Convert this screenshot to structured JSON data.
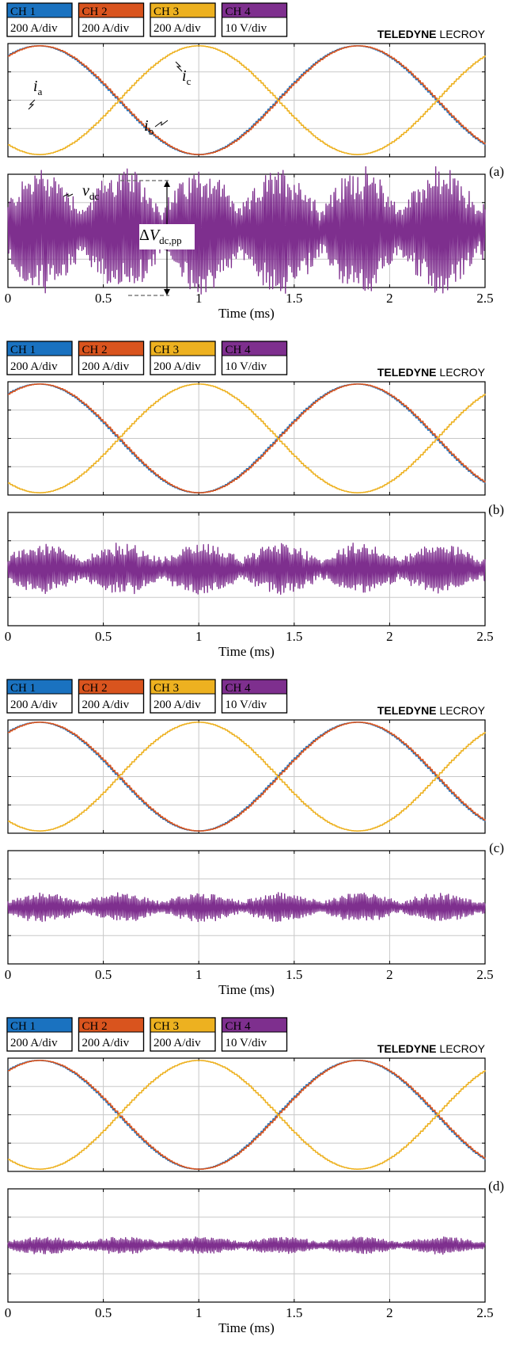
{
  "figure": {
    "brand": {
      "strong": "TELEDYNE",
      "light": "LECROY"
    },
    "x_axis_label": "Time (ms)",
    "channels": [
      {
        "id": "ch1",
        "label": "CH 1",
        "scale": "200 A/div",
        "color": "#1a72c0"
      },
      {
        "id": "ch2",
        "label": "CH 2",
        "scale": "200 A/div",
        "color": "#d9541e"
      },
      {
        "id": "ch3",
        "label": "CH 3",
        "scale": "200 A/div",
        "color": "#edb120"
      },
      {
        "id": "ch4",
        "label": "CH 4",
        "scale": "10 V/div",
        "color": "#7e2f8e"
      }
    ],
    "annotations": {
      "ia": {
        "base": "i",
        "sub": "a"
      },
      "ib": {
        "base": "i",
        "sub": "b"
      },
      "ic": {
        "base": "i",
        "sub": "c"
      },
      "vdc": {
        "base": "v",
        "sub": "dc"
      },
      "delta": {
        "prefix": "Δ",
        "base": "V",
        "sub": "dc,pp"
      }
    }
  },
  "chart_data": [
    {
      "panel": "(a)",
      "type": "line",
      "x_unit": "ms",
      "xlim": [
        0,
        2.5
      ],
      "xticks": [
        "0",
        "0.5",
        "1",
        "1.5",
        "2",
        "2.5"
      ],
      "grid": true,
      "currents": {
        "amplitude_div": 2,
        "frequency_khz": 0.6,
        "series": [
          {
            "channel": "CH 1",
            "phase_peak_ms": 1.83,
            "color": "#1a72c0"
          },
          {
            "channel": "CH 2",
            "phase_peak_ms": 0.17,
            "color": "#d9541e"
          },
          {
            "channel": "CH 3",
            "phase_peak_ms": 1.0,
            "color": "#edb120"
          }
        ]
      },
      "dc_voltage": {
        "channel": "CH 4",
        "ripple_pp_div": 4.4,
        "color": "#7e2f8e"
      }
    },
    {
      "panel": "(b)",
      "type": "line",
      "x_unit": "ms",
      "xlim": [
        0,
        2.5
      ],
      "xticks": [
        "0",
        "0.5",
        "1",
        "1.5",
        "2",
        "2.5"
      ],
      "grid": true,
      "currents": {
        "amplitude_div": 2,
        "frequency_khz": 0.6,
        "series": [
          {
            "channel": "CH 1",
            "phase_peak_ms": 1.83,
            "color": "#1a72c0"
          },
          {
            "channel": "CH 2",
            "phase_peak_ms": 0.17,
            "color": "#d9541e"
          },
          {
            "channel": "CH 3",
            "phase_peak_ms": 1.0,
            "color": "#edb120"
          }
        ]
      },
      "dc_voltage": {
        "channel": "CH 4",
        "ripple_pp_div": 1.8,
        "color": "#7e2f8e"
      }
    },
    {
      "panel": "(c)",
      "type": "line",
      "x_unit": "ms",
      "xlim": [
        0,
        2.5
      ],
      "xticks": [
        "0",
        "0.5",
        "1",
        "1.5",
        "2",
        "2.5"
      ],
      "grid": true,
      "currents": {
        "amplitude_div": 2,
        "frequency_khz": 0.6,
        "series": [
          {
            "channel": "CH 1",
            "phase_peak_ms": 1.83,
            "color": "#1a72c0"
          },
          {
            "channel": "CH 2",
            "phase_peak_ms": 0.17,
            "color": "#d9541e"
          },
          {
            "channel": "CH 3",
            "phase_peak_ms": 1.0,
            "color": "#edb120"
          }
        ]
      },
      "dc_voltage": {
        "channel": "CH 4",
        "ripple_pp_div": 1.0,
        "color": "#7e2f8e"
      }
    },
    {
      "panel": "(d)",
      "type": "line",
      "x_unit": "ms",
      "xlim": [
        0,
        2.5
      ],
      "xticks": [
        "0",
        "0.5",
        "1",
        "1.5",
        "2",
        "2.5"
      ],
      "grid": true,
      "currents": {
        "amplitude_div": 2,
        "frequency_khz": 0.6,
        "series": [
          {
            "channel": "CH 1",
            "phase_peak_ms": 1.83,
            "color": "#1a72c0"
          },
          {
            "channel": "CH 2",
            "phase_peak_ms": 0.17,
            "color": "#d9541e"
          },
          {
            "channel": "CH 3",
            "phase_peak_ms": 1.0,
            "color": "#edb120"
          }
        ]
      },
      "dc_voltage": {
        "channel": "CH 4",
        "ripple_pp_div": 0.6,
        "color": "#7e2f8e"
      }
    }
  ]
}
